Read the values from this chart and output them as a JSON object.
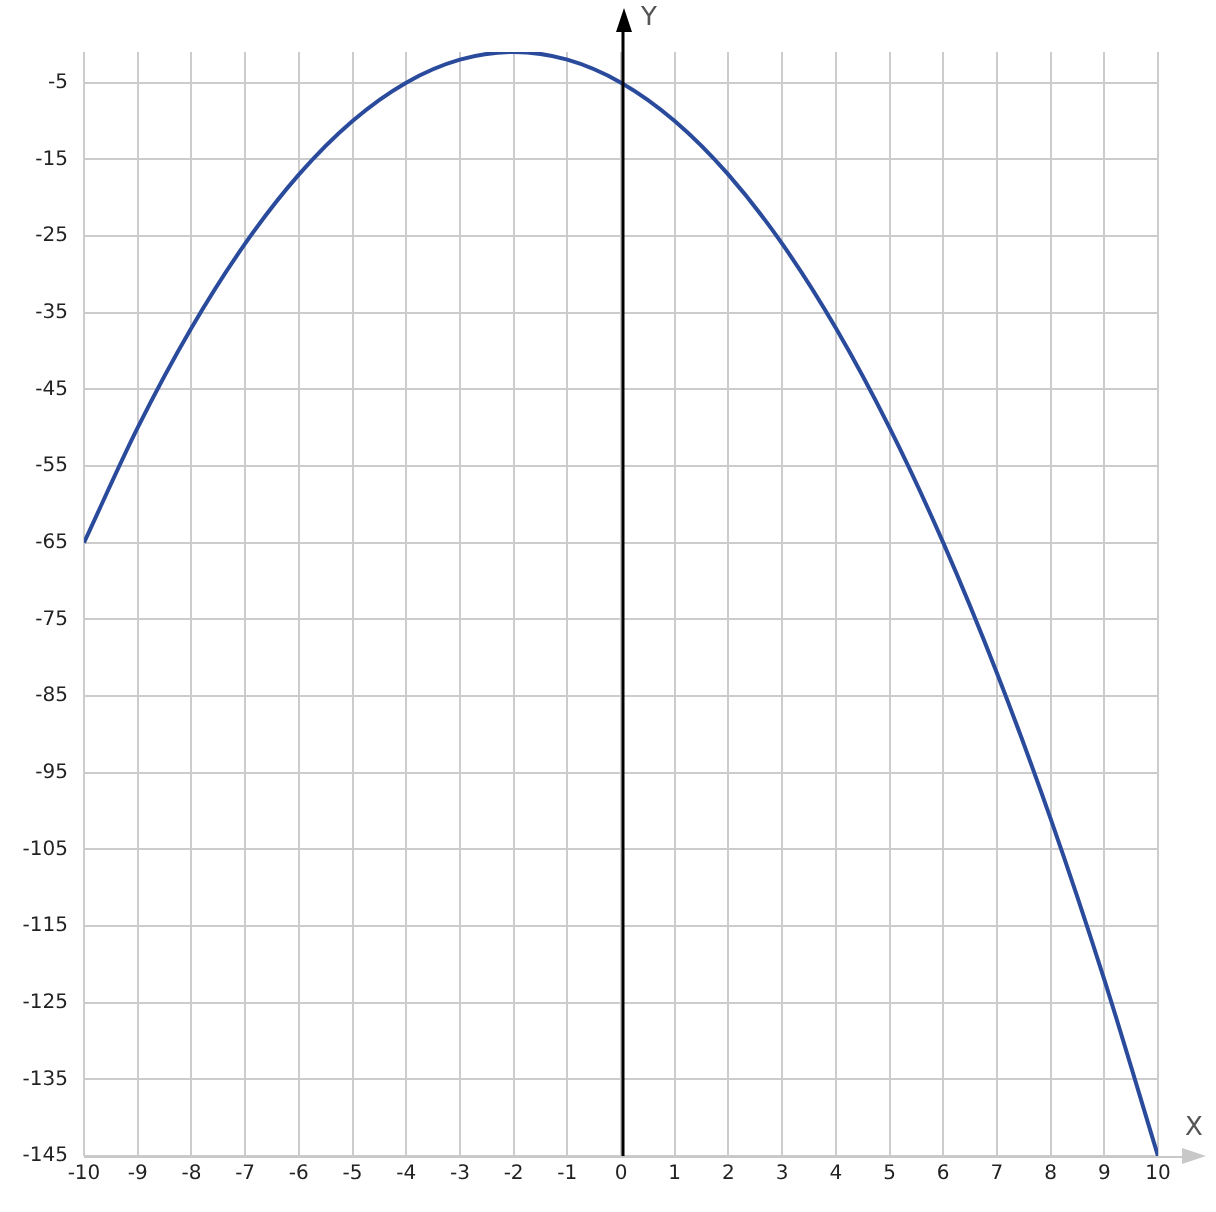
{
  "chart_data": {
    "type": "line",
    "xlabel": "X",
    "ylabel": "Y",
    "x": [
      -10,
      -9,
      -8,
      -7,
      -6,
      -5,
      -4,
      -3,
      -2,
      -1,
      0,
      1,
      2,
      3,
      4,
      5,
      6,
      7,
      8,
      9,
      10
    ],
    "series": [
      {
        "color": "#2a4a9c",
        "values": [
          -65,
          -50,
          -37,
          -26,
          -17,
          -10,
          -5,
          -2,
          -1,
          -2,
          -5,
          -10,
          -17,
          -26,
          -37,
          -50,
          -65,
          -82,
          -101,
          -122,
          -145
        ]
      }
    ],
    "xlim": [
      -10,
      10
    ],
    "xticks": [
      -10,
      -9,
      -8,
      -7,
      -6,
      -5,
      -4,
      -3,
      -2,
      -1,
      0,
      1,
      2,
      3,
      4,
      5,
      6,
      7,
      8,
      9,
      10
    ],
    "ylim": [
      -145,
      -1
    ],
    "yticks": [
      -5,
      -15,
      -25,
      -35,
      -45,
      -55,
      -65,
      -75,
      -85,
      -95,
      -105,
      -115,
      -125,
      -135,
      -145
    ],
    "grid": true,
    "legend": false,
    "marker": "none",
    "line_style": "solid",
    "ref_lines": [
      {
        "axis": "x",
        "value": 0,
        "color": "#000000"
      }
    ]
  }
}
